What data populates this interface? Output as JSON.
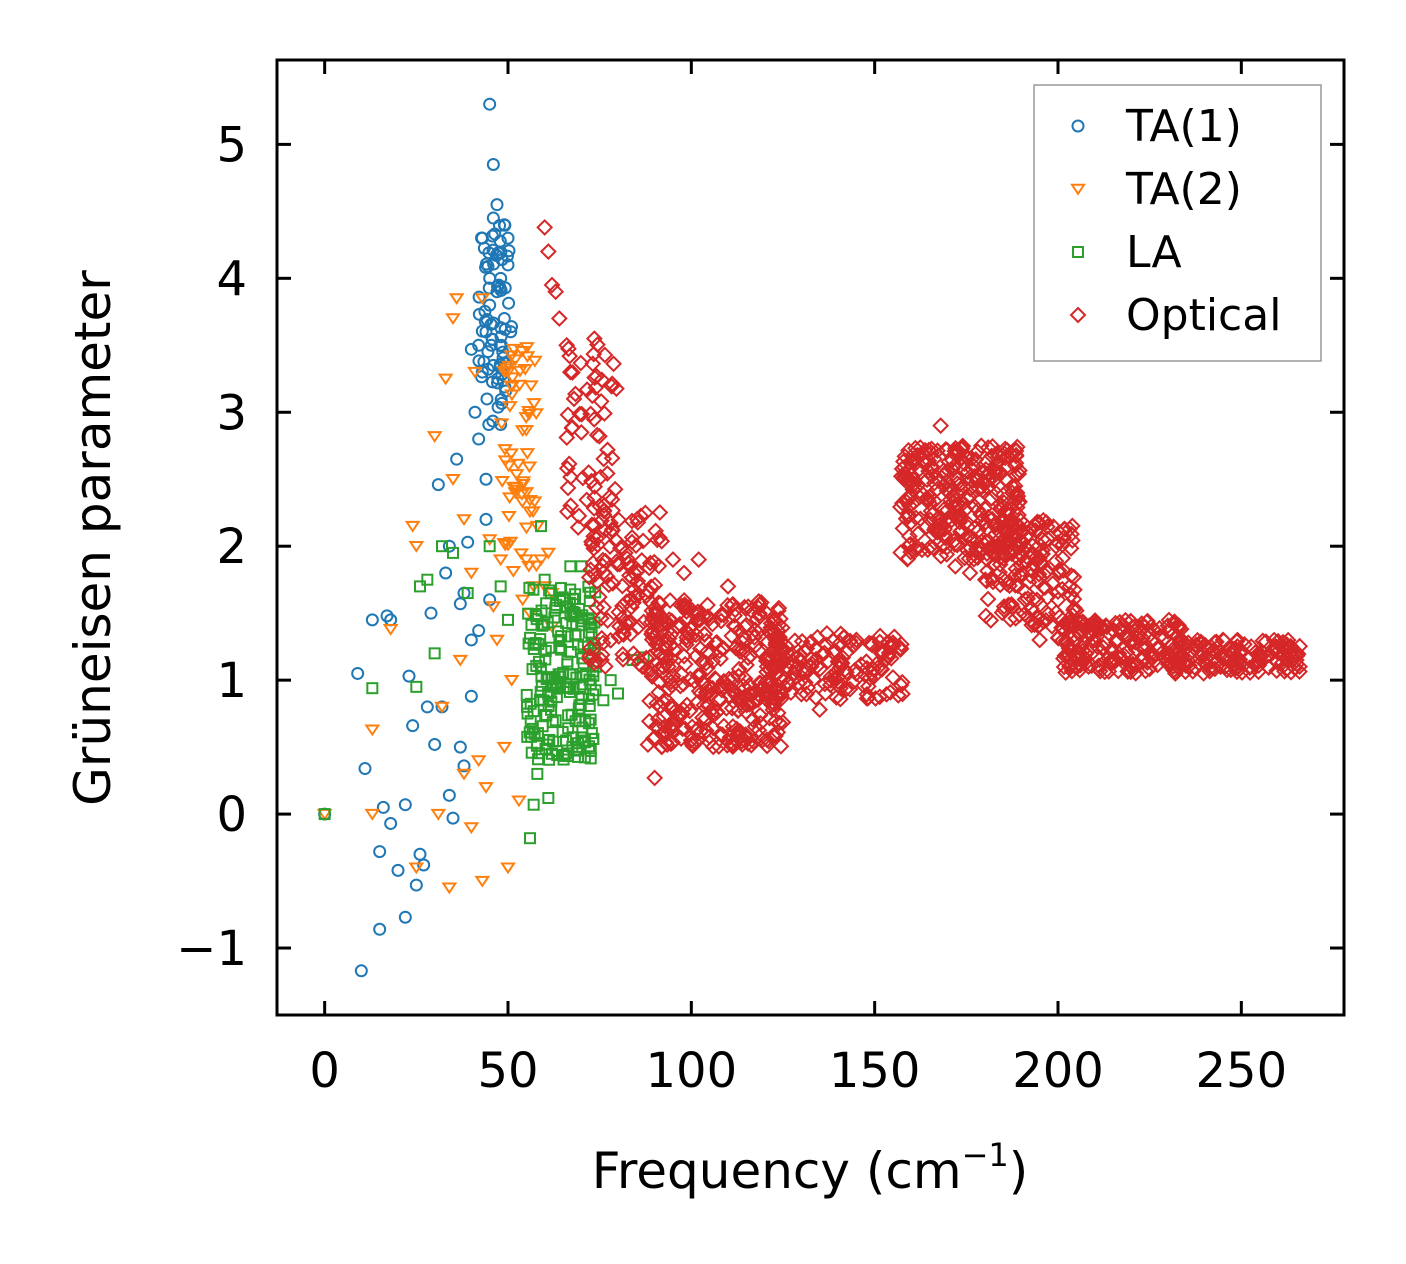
{
  "chart_data": {
    "type": "scatter",
    "title": "",
    "xlabel": "Frequency (cm",
    "xlabel_sup": "−1",
    "xlabel_suffix": ")",
    "ylabel": "Grüneisen parameter",
    "xlim": [
      -13,
      278
    ],
    "ylim": [
      -1.5,
      5.63
    ],
    "xticks": [
      0,
      50,
      100,
      150,
      200,
      250
    ],
    "xtick_labels": [
      "0",
      "50",
      "100",
      "150",
      "200",
      "250"
    ],
    "yticks": [
      -1,
      0,
      1,
      2,
      3,
      4,
      5
    ],
    "ytick_labels": [
      "−1",
      "0",
      "1",
      "2",
      "3",
      "4",
      "5"
    ],
    "grid": false,
    "legend_position": "top-right",
    "series": [
      {
        "name": "TA(1)",
        "color": "#1f77b4",
        "marker": "circle",
        "points": [
          [
            0,
            0
          ],
          [
            9,
            1.05
          ],
          [
            10,
            -1.17
          ],
          [
            11,
            0.34
          ],
          [
            13,
            1.45
          ],
          [
            15,
            -0.28
          ],
          [
            15,
            -0.86
          ],
          [
            16,
            0.05
          ],
          [
            17,
            1.48
          ],
          [
            18,
            1.45
          ],
          [
            18,
            -0.07
          ],
          [
            20,
            -0.42
          ],
          [
            22,
            -0.77
          ],
          [
            22,
            0.07
          ],
          [
            23,
            1.03
          ],
          [
            24,
            0.66
          ],
          [
            25,
            -0.53
          ],
          [
            26,
            -0.3
          ],
          [
            27,
            -0.38
          ],
          [
            28,
            0.8
          ],
          [
            29,
            1.5
          ],
          [
            30,
            0.52
          ],
          [
            31,
            2.46
          ],
          [
            32,
            0.8
          ],
          [
            33,
            1.8
          ],
          [
            34,
            2.0
          ],
          [
            34,
            0.14
          ],
          [
            35,
            -0.03
          ],
          [
            36,
            2.65
          ],
          [
            37,
            0.5
          ],
          [
            37,
            1.57
          ],
          [
            38,
            1.65
          ],
          [
            38,
            0.36
          ],
          [
            39,
            2.03
          ],
          [
            40,
            3.47
          ],
          [
            40,
            1.3
          ],
          [
            40,
            0.88
          ],
          [
            41,
            3.0
          ],
          [
            42,
            3.5
          ],
          [
            42,
            2.8
          ],
          [
            42,
            1.37
          ],
          [
            43,
            4.3
          ],
          [
            43,
            3.3
          ],
          [
            44,
            3.6
          ],
          [
            44,
            2.5
          ],
          [
            44,
            2.2
          ],
          [
            45,
            5.3
          ],
          [
            45,
            4.0
          ],
          [
            45,
            3.8
          ],
          [
            45,
            1.6
          ],
          [
            46,
            4.85
          ],
          [
            46,
            4.45
          ],
          [
            46,
            3.35
          ],
          [
            47,
            4.55
          ],
          [
            47,
            3.9
          ],
          [
            48,
            4.0
          ],
          [
            49,
            4.4
          ],
          [
            49,
            3.7
          ],
          [
            50,
            4.3
          ],
          [
            50,
            4.1
          ]
        ],
        "cluster": {
          "x": [
            42,
            51
          ],
          "y": [
            2.9,
            4.4
          ],
          "count": 70
        }
      },
      {
        "name": "TA(2)",
        "color": "#ff7f0e",
        "marker": "triangle-down",
        "points": [
          [
            0,
            0
          ],
          [
            13,
            0.0
          ],
          [
            13,
            0.63
          ],
          [
            18,
            1.38
          ],
          [
            24,
            2.15
          ],
          [
            25,
            2.0
          ],
          [
            25,
            -0.4
          ],
          [
            30,
            2.82
          ],
          [
            31,
            0.0
          ],
          [
            32,
            0.8
          ],
          [
            33,
            3.25
          ],
          [
            34,
            -0.55
          ],
          [
            35,
            2.5
          ],
          [
            35,
            3.7
          ],
          [
            36,
            3.85
          ],
          [
            37,
            1.15
          ],
          [
            38,
            2.2
          ],
          [
            38,
            0.3
          ],
          [
            40,
            -0.1
          ],
          [
            40,
            1.8
          ],
          [
            41,
            3.3
          ],
          [
            42,
            0.4
          ],
          [
            43,
            3.85
          ],
          [
            43,
            -0.5
          ],
          [
            44,
            0.2
          ],
          [
            45,
            2.05
          ],
          [
            46,
            1.55
          ],
          [
            47,
            1.3
          ],
          [
            48,
            1.9
          ],
          [
            49,
            0.5
          ],
          [
            50,
            3.3
          ],
          [
            50,
            -0.4
          ],
          [
            51,
            1.0
          ],
          [
            52,
            2.4
          ],
          [
            53,
            0.1
          ],
          [
            54,
            1.6
          ],
          [
            55,
            1.9
          ],
          [
            56,
            1.5
          ],
          [
            57,
            1.7
          ],
          [
            58,
            2.15
          ],
          [
            59,
            1.9
          ],
          [
            60,
            1.7
          ],
          [
            61,
            1.95
          ],
          [
            62,
            1.4
          ],
          [
            62,
            1.65
          ]
        ],
        "cluster": {
          "x": [
            48,
            58
          ],
          "y": [
            1.8,
            3.5
          ],
          "count": 60
        }
      },
      {
        "name": "LA",
        "color": "#2ca02c",
        "marker": "square",
        "points": [
          [
            0,
            0
          ],
          [
            13,
            0.94
          ],
          [
            25,
            0.95
          ],
          [
            26,
            1.7
          ],
          [
            28,
            1.75
          ],
          [
            30,
            1.2
          ],
          [
            32,
            2.0
          ],
          [
            35,
            1.95
          ],
          [
            39,
            1.65
          ],
          [
            45,
            2.0
          ],
          [
            48,
            1.7
          ],
          [
            50,
            1.45
          ],
          [
            56,
            -0.18
          ],
          [
            57,
            0.07
          ],
          [
            58,
            0.3
          ],
          [
            59,
            2.15
          ],
          [
            60,
            1.75
          ],
          [
            61,
            0.12
          ],
          [
            62,
            0.45
          ],
          [
            63,
            0.7
          ],
          [
            64,
            1.3
          ],
          [
            65,
            1.6
          ],
          [
            67,
            1.85
          ],
          [
            70,
            1.85
          ],
          [
            72,
            1.45
          ],
          [
            74,
            1.1
          ],
          [
            76,
            0.85
          ],
          [
            78,
            1.0
          ],
          [
            80,
            0.9
          ],
          [
            84,
            1.15
          ],
          [
            87,
            1.17
          ]
        ],
        "cluster": {
          "x": [
            55,
            74
          ],
          "y": [
            0.4,
            1.7
          ],
          "count": 200
        }
      },
      {
        "name": "Optical",
        "color": "#d62728",
        "marker": "diamond",
        "points": [
          [
            60,
            4.38
          ],
          [
            61,
            4.2
          ],
          [
            62,
            3.95
          ],
          [
            63,
            3.9
          ],
          [
            64,
            3.7
          ],
          [
            66,
            3.5
          ],
          [
            67,
            3.3
          ],
          [
            68,
            3.1
          ],
          [
            70,
            2.85
          ],
          [
            72,
            2.55
          ],
          [
            75,
            2.3
          ],
          [
            78,
            2.1
          ],
          [
            82,
            1.95
          ],
          [
            86,
            1.7
          ],
          [
            90,
            0.27
          ],
          [
            92,
            0.6
          ],
          [
            95,
            1.9
          ],
          [
            98,
            1.8
          ],
          [
            102,
            1.9
          ],
          [
            110,
            1.7
          ],
          [
            124,
            0.68
          ],
          [
            135,
            0.78
          ],
          [
            145,
            1.3
          ],
          [
            155,
            1.02
          ],
          [
            158,
            2.5
          ],
          [
            168,
            2.9
          ],
          [
            172,
            1.85
          ],
          [
            176,
            1.8
          ],
          [
            190,
            2.1
          ],
          [
            195,
            1.3
          ],
          [
            200,
            1.6
          ],
          [
            210,
            1.3
          ],
          [
            222,
            1.4
          ],
          [
            232,
            1.05
          ],
          [
            245,
            1.3
          ],
          [
            255,
            1.2
          ],
          [
            265,
            1.15
          ]
        ],
        "clusters": [
          {
            "x": [
              66,
              80
            ],
            "y": [
              2.1,
              3.6
            ],
            "count": 60
          },
          {
            "x": [
              72,
              92
            ],
            "y": [
              1.1,
              2.3
            ],
            "count": 120
          },
          {
            "x": [
              88,
              125
            ],
            "y": [
              0.5,
              1.6
            ],
            "count": 360
          },
          {
            "x": [
              120,
              158
            ],
            "y": [
              0.85,
              1.35
            ],
            "count": 160
          },
          {
            "x": [
              157,
              190
            ],
            "y": [
              1.9,
              2.75
            ],
            "count": 320
          },
          {
            "x": [
              180,
              205
            ],
            "y": [
              1.4,
              2.2
            ],
            "count": 160
          },
          {
            "x": [
              200,
              235
            ],
            "y": [
              1.05,
              1.45
            ],
            "count": 200
          },
          {
            "x": [
              230,
              266
            ],
            "y": [
              1.05,
              1.3
            ],
            "count": 150
          }
        ]
      }
    ]
  }
}
